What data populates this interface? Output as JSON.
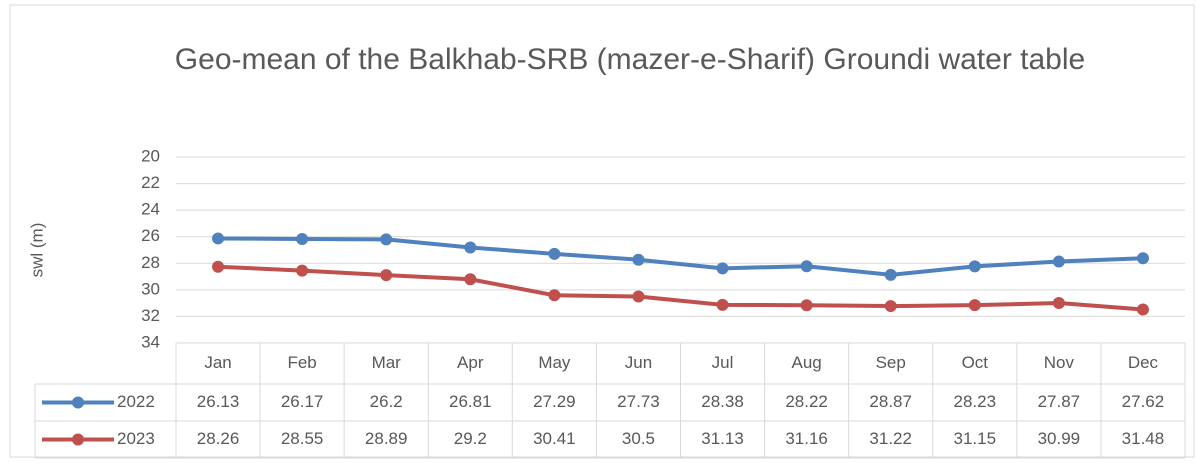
{
  "chart_data": {
    "type": "line",
    "title": "Geo-mean of the Balkhab-SRB (mazer-e-Sharif) Groundi water table",
    "y_label": "swl (m)",
    "categories": [
      "Jan",
      "Feb",
      "Mar",
      "Apr",
      "May",
      "Jun",
      "Jul",
      "Aug",
      "Sep",
      "Oct",
      "Nov",
      "Dec"
    ],
    "series": [
      {
        "name": "2022",
        "color": "#4f81bd",
        "values": [
          26.13,
          26.17,
          26.2,
          26.81,
          27.29,
          27.73,
          28.38,
          28.22,
          28.87,
          28.23,
          27.87,
          27.62
        ]
      },
      {
        "name": "2023",
        "color": "#c0504d",
        "values": [
          28.26,
          28.55,
          28.89,
          29.2,
          30.41,
          30.5,
          31.13,
          31.16,
          31.22,
          31.15,
          30.99,
          31.48
        ]
      }
    ],
    "ylim": [
      20,
      34
    ],
    "yticks": [
      20,
      22,
      24,
      26,
      28,
      30,
      32,
      34
    ],
    "y_inverted": true,
    "grid": true,
    "data_table": true
  }
}
